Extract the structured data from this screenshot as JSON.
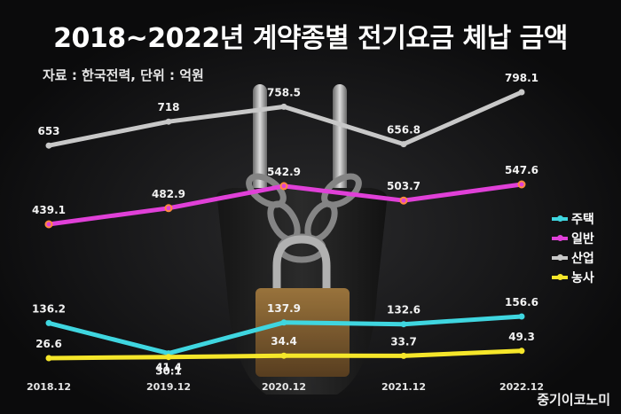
{
  "chart_data": {
    "type": "line",
    "title": "2018~2022년 계약종별 전기요금 체납 금액",
    "subtitle": "자료 : 한국전력, 단위 : 억원",
    "categories": [
      "2018.12",
      "2019.12",
      "2020.12",
      "2021.12",
      "2022.12"
    ],
    "legend_position": "right",
    "series": [
      {
        "name": "주택",
        "color": "#3fd6e0",
        "values": [
          136.2,
          41.4,
          137.9,
          132.6,
          156.6
        ]
      },
      {
        "name": "일반",
        "color": "#e040d8",
        "values": [
          439.1,
          482.9,
          542.9,
          503.7,
          547.6
        ]
      },
      {
        "name": "산업",
        "color": "#c8c8c8",
        "values": [
          653,
          718,
          758.5,
          656.8,
          798.1
        ]
      },
      {
        "name": "농사",
        "color": "#f5e62a",
        "values": [
          26.6,
          30.1,
          34.4,
          33.7,
          49.3
        ]
      }
    ]
  },
  "brand": "중기이코노미"
}
